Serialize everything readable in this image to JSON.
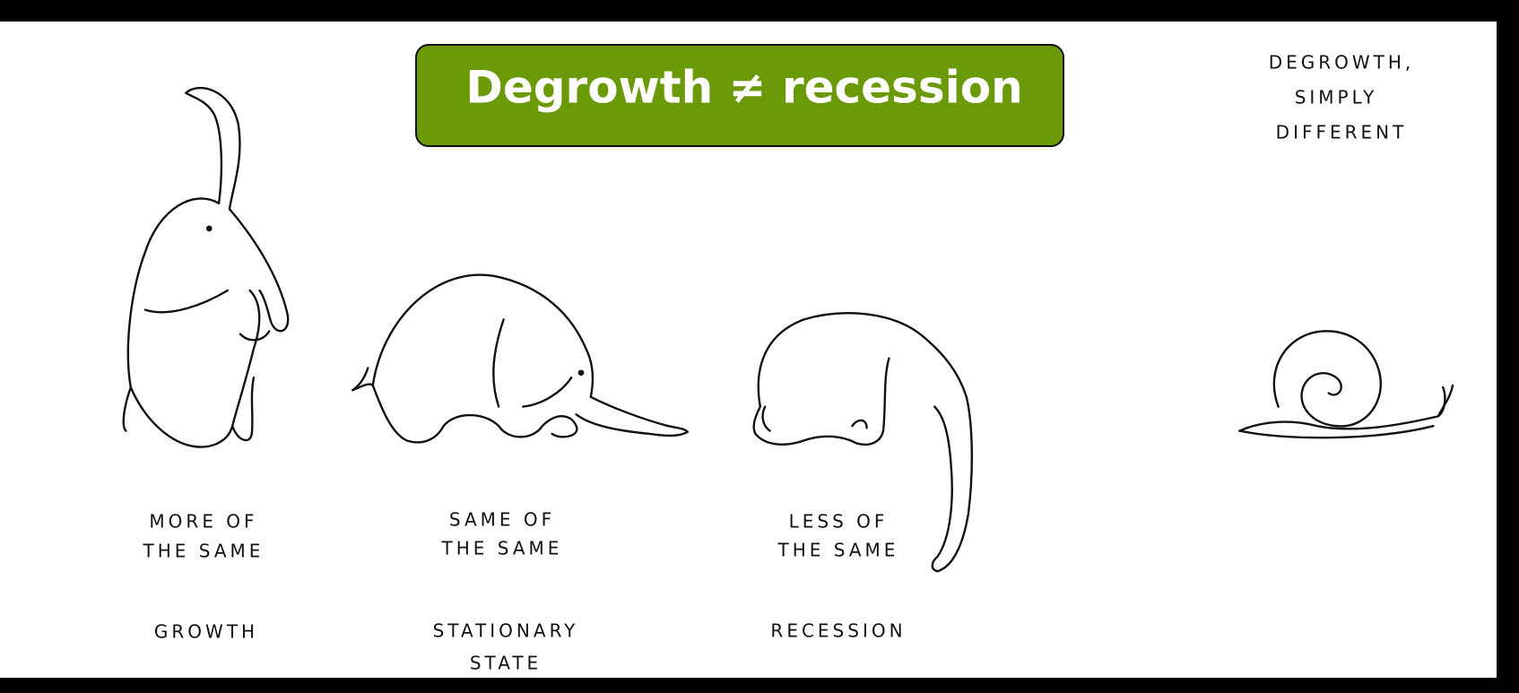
{
  "title": "Degrowth ≠ recession",
  "panels": [
    {
      "caption": [
        "MORE OF",
        "THE SAME"
      ],
      "label": [
        "GROWTH"
      ]
    },
    {
      "caption": [
        "SAME OF",
        "THE SAME"
      ],
      "label": [
        "STATIONARY",
        "STATE"
      ]
    },
    {
      "caption": [
        "LESS OF",
        "THE SAME"
      ],
      "label": [
        "RECESSION"
      ]
    },
    {
      "caption": [
        "DEGROWTH,",
        "SIMPLY",
        "DIFFERENT"
      ]
    }
  ]
}
